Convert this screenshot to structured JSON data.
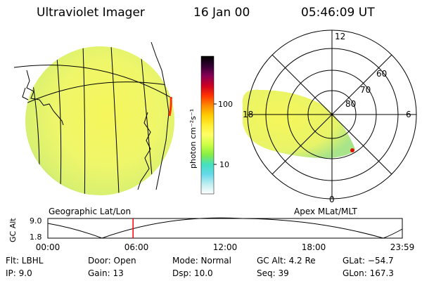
{
  "header": {
    "title": "Ultraviolet Imager",
    "date": "16 Jan 00",
    "time": "05:46:09 UT"
  },
  "left_panel": {
    "caption": "Geographic Lat/Lon"
  },
  "colorbar": {
    "unit_label": "photon cm⁻²s⁻¹",
    "ticks": [
      "100",
      "10"
    ],
    "stops": [
      "#ffffff",
      "#bfeef0",
      "#66d9ea",
      "#44e0c0",
      "#88ee44",
      "#ccff44",
      "#ffff66",
      "#ffee33",
      "#ffcc00",
      "#ff8800",
      "#ff3300",
      "#cc0022",
      "#880055",
      "#330033",
      "#000000"
    ]
  },
  "polar_plot": {
    "caption": "Apex MLat/MLT",
    "mlt_labels": {
      "top": "12",
      "right": "6",
      "bottom": "0",
      "left": "18"
    },
    "lat_labels": [
      "60",
      "70",
      "80"
    ]
  },
  "timeline": {
    "axis_label": "GC Alt",
    "y_ticks": [
      "9.0",
      "1.8"
    ],
    "x_ticks": [
      "00:00",
      "06:00",
      "12:00",
      "18:00",
      "23:59"
    ],
    "marker_hour": 5.77,
    "marker_color": "#ff0000"
  },
  "info": {
    "filter": "Flt: LBHL",
    "door": "Door: Open",
    "mode": "Mode: Normal",
    "gc_alt": "GC Alt: 4.2 Re",
    "glat": "GLat: −54.7",
    "ip": "IP: 9.0",
    "gain": "Gain: 13",
    "dsp": "Dsp: 10.0",
    "seq": "Seq: 39",
    "glon": "GLon: 167.3"
  }
}
